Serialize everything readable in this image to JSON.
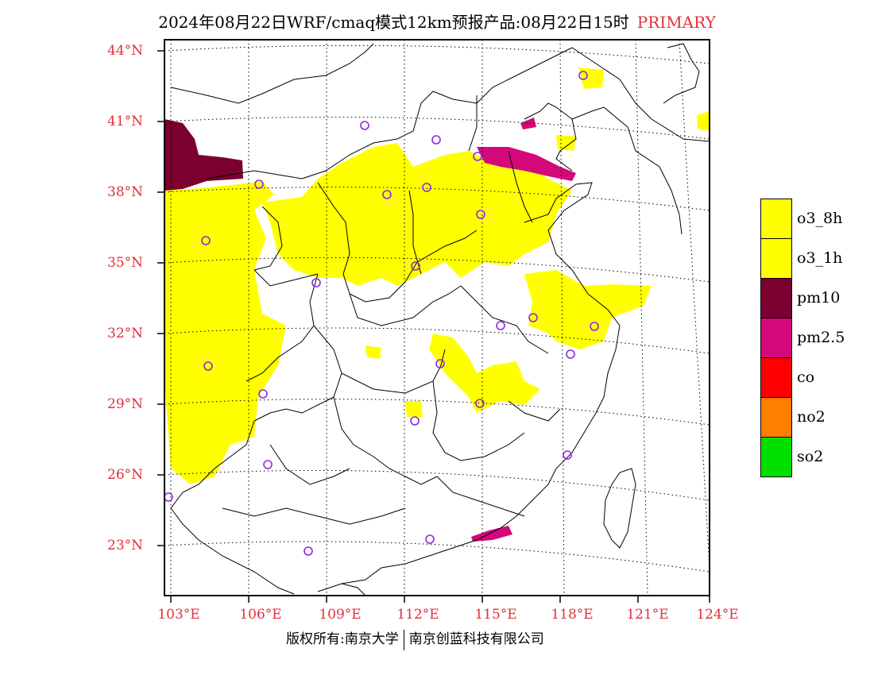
{
  "title": {
    "main": "2024年08月22日WRF/cmaq模式12km预报产品:08月22日15时",
    "product": "PRIMARY"
  },
  "lat_labels": [
    "44°N",
    "41°N",
    "38°N",
    "35°N",
    "32°N",
    "29°N",
    "26°N",
    "23°N"
  ],
  "lon_labels": [
    "103°E",
    "106°E",
    "109°E",
    "112°E",
    "115°E",
    "118°E",
    "121°E",
    "124°E"
  ],
  "legend": [
    {
      "label": "o3_8h",
      "color": "#ffff00"
    },
    {
      "label": "o3_1h",
      "color": "#ffff00"
    },
    {
      "label": "pm10",
      "color": "#7b0030"
    },
    {
      "label": "pm2.5",
      "color": "#d4087a"
    },
    {
      "label": "co",
      "color": "#ff0000"
    },
    {
      "label": "no2",
      "color": "#ff8000"
    },
    {
      "label": "so2",
      "color": "#00e000"
    }
  ],
  "footer": {
    "left": "版权所有:南京大学",
    "right": "南京创蓝科技有限公司"
  },
  "colors": {
    "label_red": "#e0303a",
    "station_marker": "#8a2be2",
    "o3": "#ffff00",
    "pm10": "#7b0030",
    "pm25": "#d4087a"
  }
}
